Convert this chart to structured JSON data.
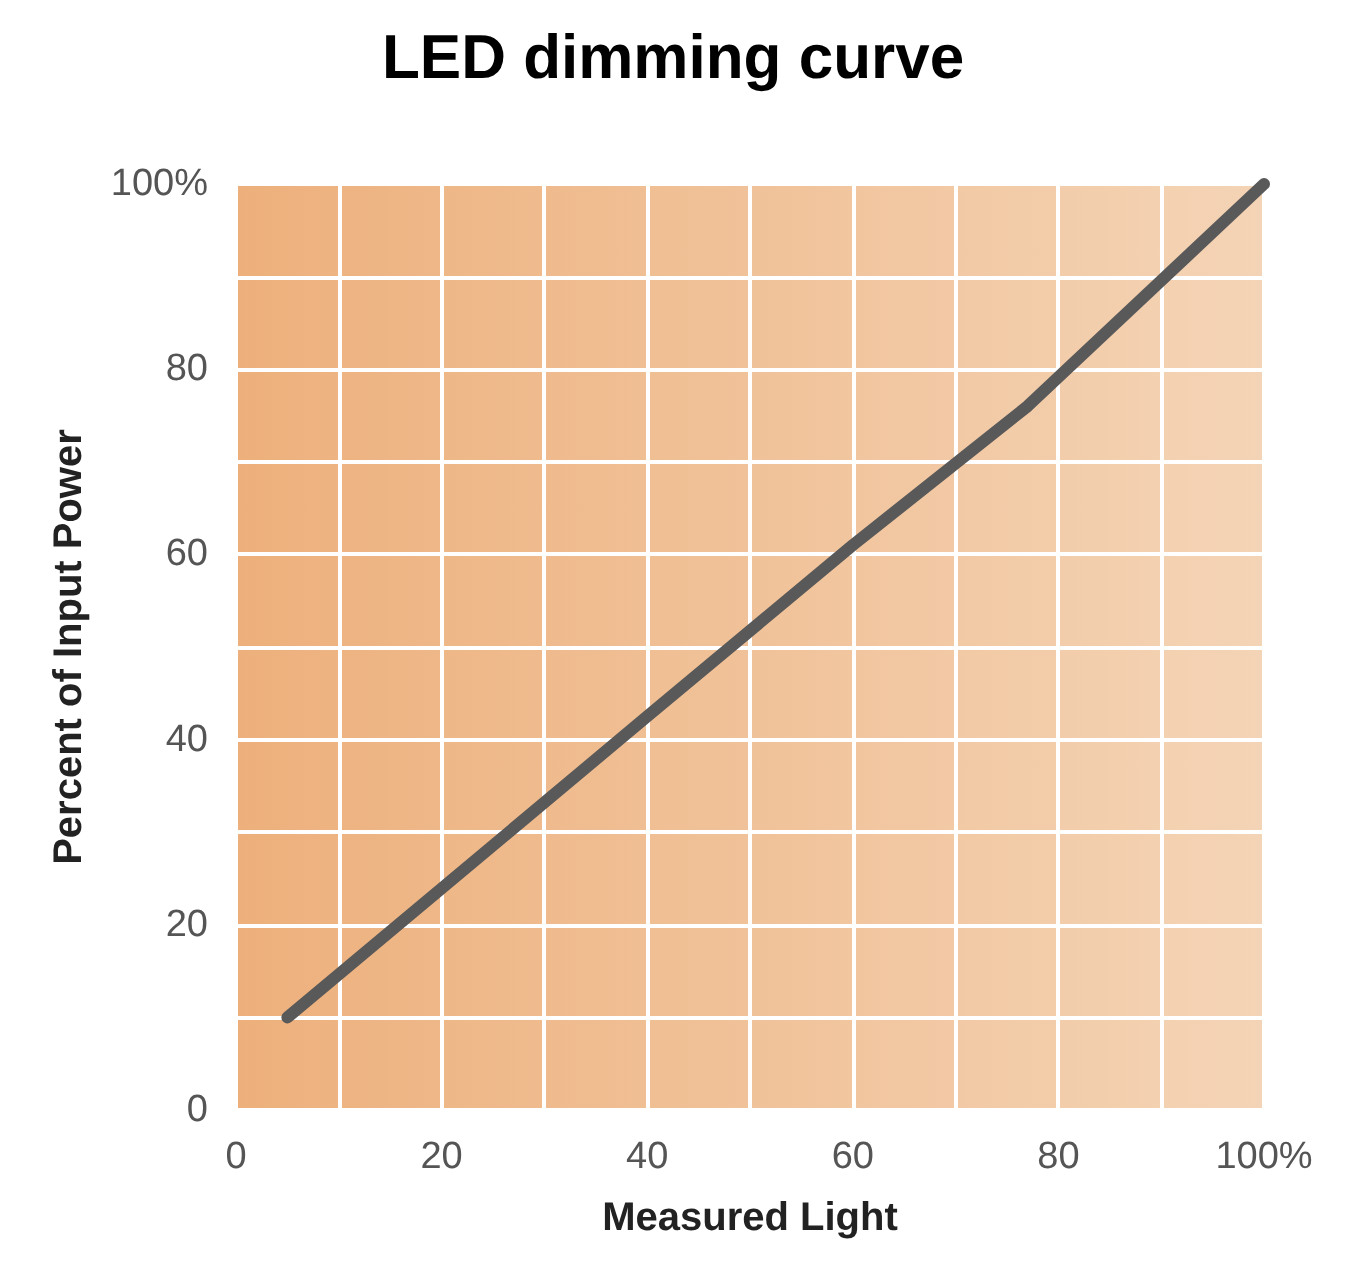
{
  "chart_data": {
    "type": "line",
    "title": "LED dimming curve",
    "xlabel": "Measured Light",
    "ylabel": "Percent of Input Power",
    "x": [
      5,
      40,
      60,
      77,
      100
    ],
    "series": [
      {
        "color": "#595959",
        "values": [
          10,
          42.5,
          61,
          76,
          100
        ]
      }
    ],
    "xlim": [
      0,
      100
    ],
    "ylim": [
      0,
      100
    ],
    "xticks": [
      0,
      {
        "value": 10,
        "label": null
      },
      20,
      {
        "value": 30,
        "label": null
      },
      40,
      {
        "value": 50,
        "label": null
      },
      60,
      {
        "value": 70,
        "label": null
      },
      80,
      {
        "value": 90,
        "label": null
      },
      {
        "value": 100,
        "label": "100%"
      }
    ],
    "yticks": [
      0,
      {
        "value": 10,
        "label": null
      },
      20,
      {
        "value": 30,
        "label": null
      },
      40,
      {
        "value": 50,
        "label": null
      },
      60,
      {
        "value": 70,
        "label": null
      },
      80,
      {
        "value": 90,
        "label": null
      },
      {
        "value": 100,
        "label": "100%"
      }
    ],
    "grid": true,
    "marker": "none",
    "line_style": "solid"
  }
}
